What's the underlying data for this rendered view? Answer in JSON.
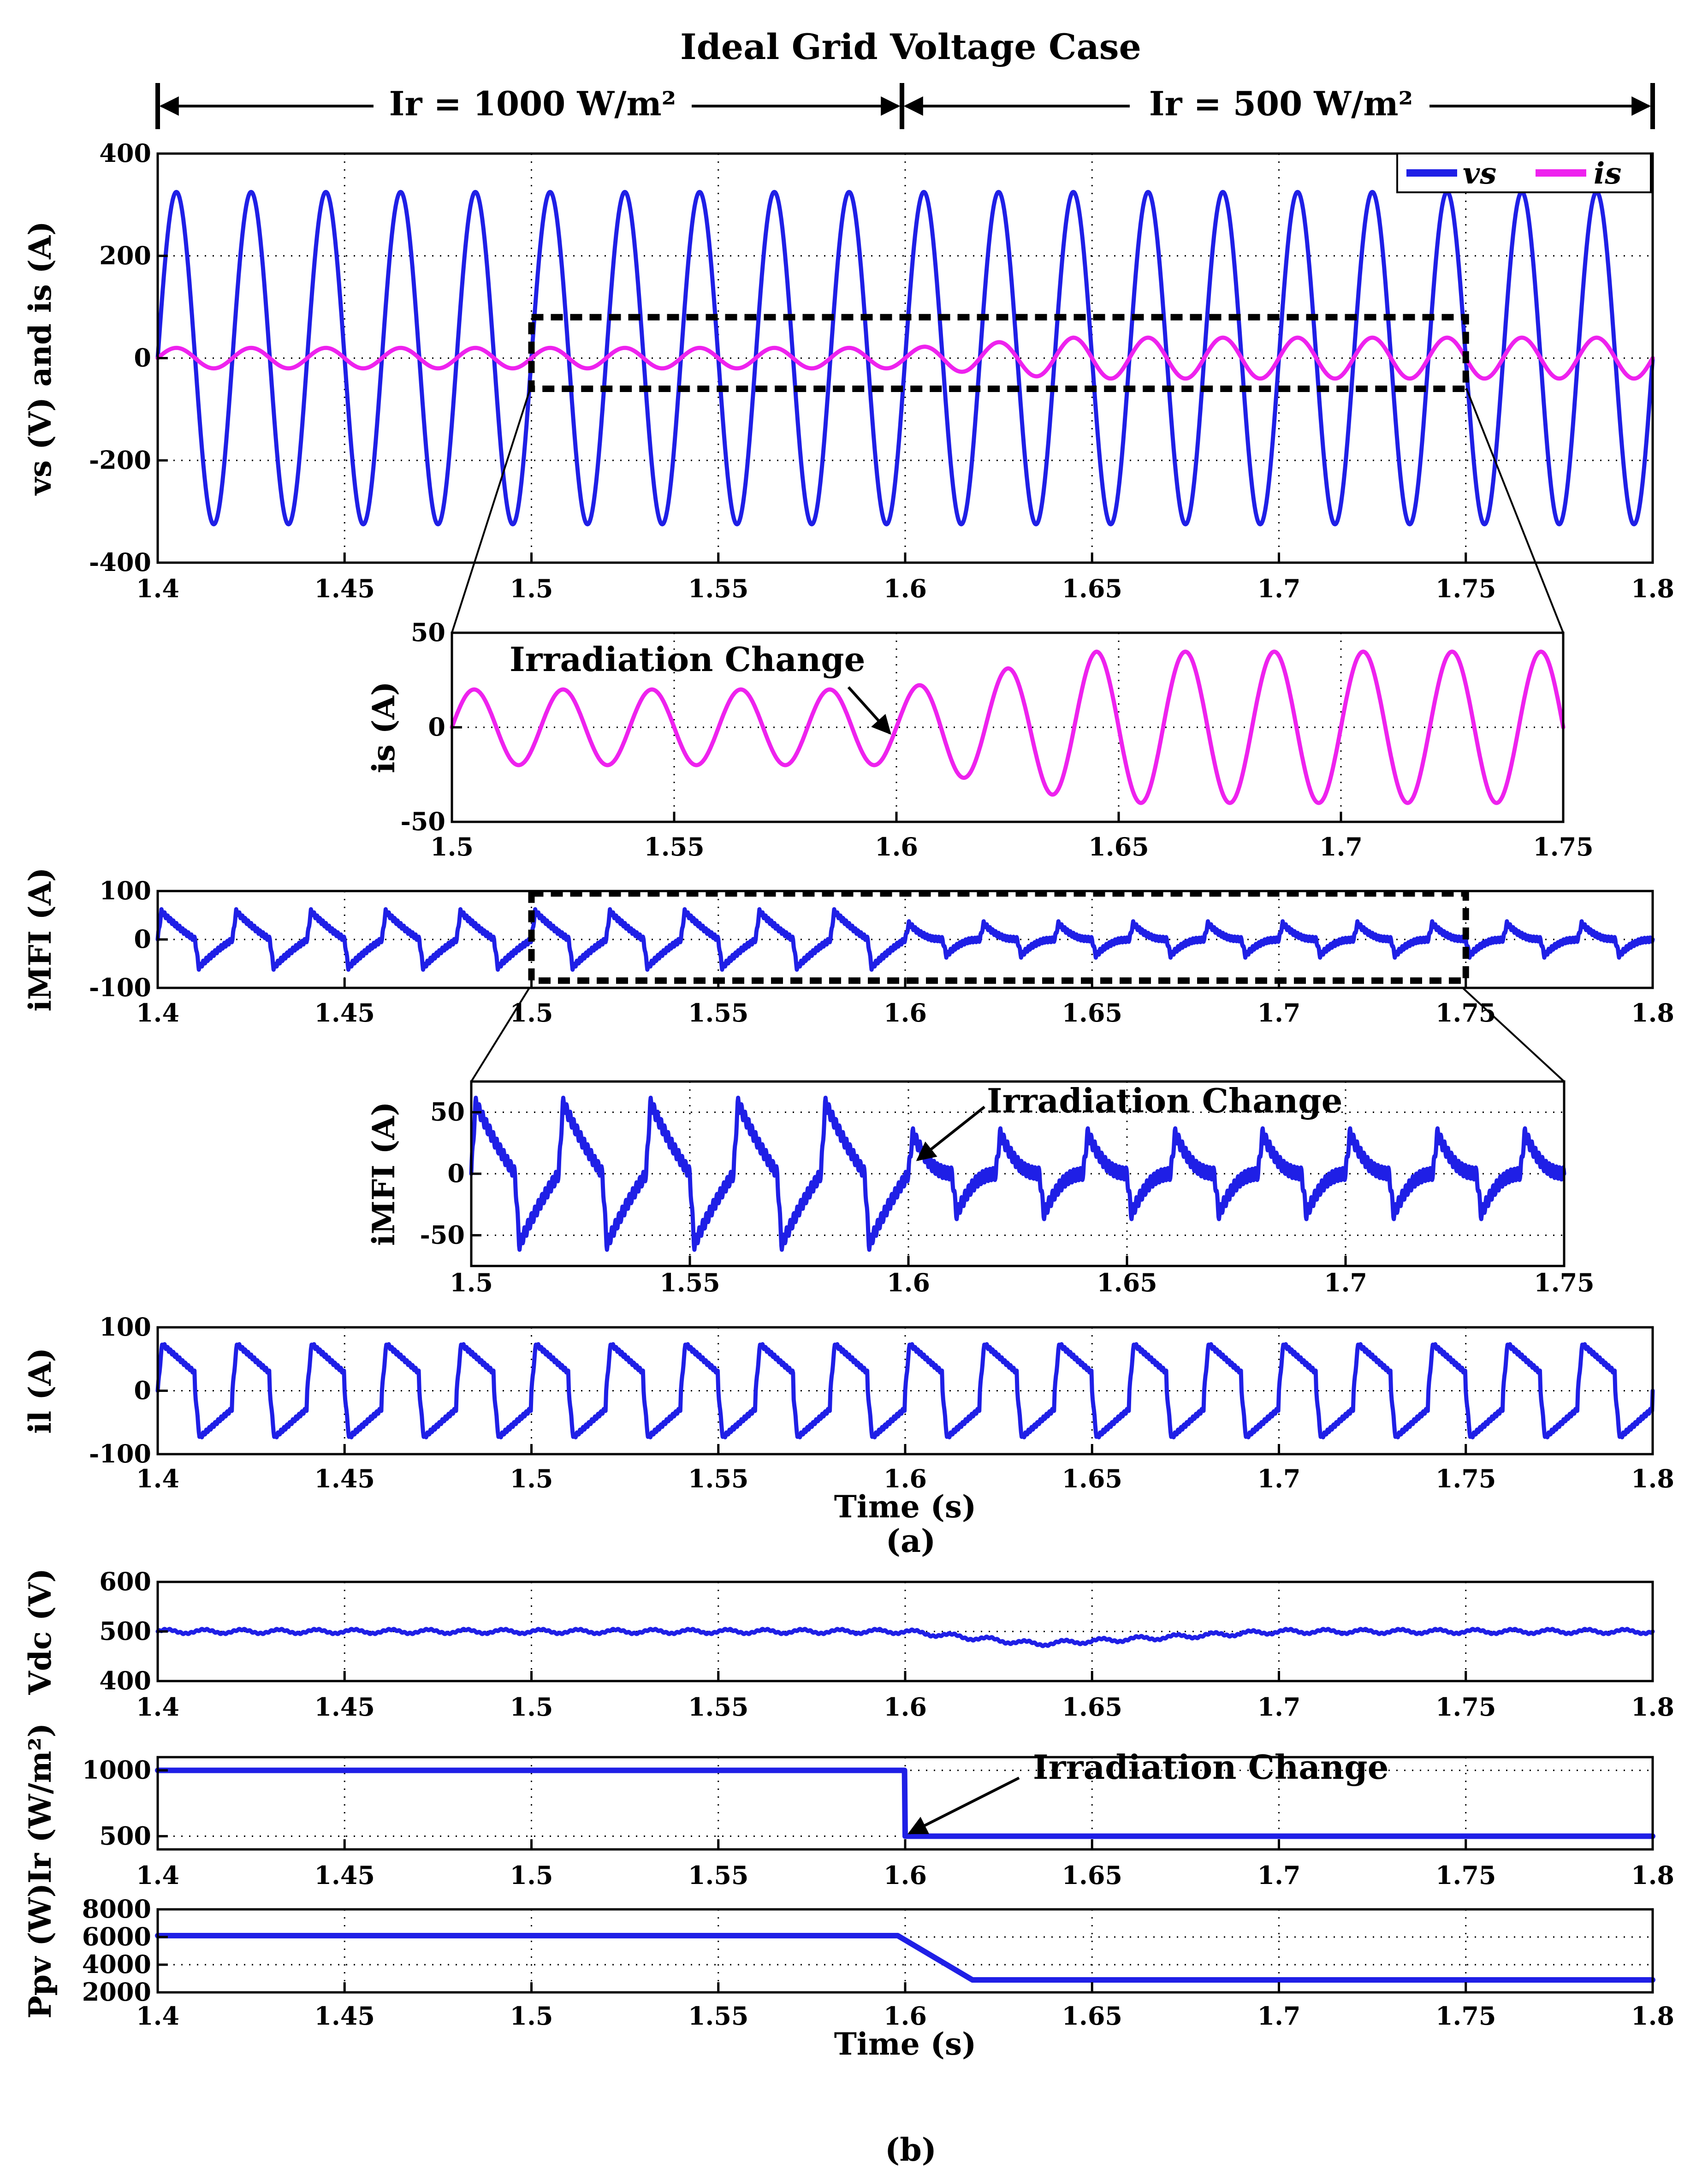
{
  "figure": {
    "title": "Ideal Grid Voltage Case",
    "irradiance_left_label": "Ir = 1000 W/m²",
    "irradiance_right_label": "Ir = 500 W/m²",
    "caption_a": "(a)",
    "caption_b": "(b)"
  },
  "colors": {
    "voltage": "#1f1fe6",
    "current_is": "#ee22ee",
    "other": "#1f1fe6"
  },
  "chart_data": [
    {
      "id": "vs_is",
      "type": "line",
      "ylabel": "vs (V) and is (A)",
      "xlim": [
        1.4,
        1.8
      ],
      "ylim": [
        -400,
        400
      ],
      "xticks": [
        1.4,
        1.45,
        1.5,
        1.55,
        1.6,
        1.65,
        1.7,
        1.75,
        1.8
      ],
      "yticks": [
        -400,
        -200,
        0,
        200,
        400
      ],
      "legend": [
        "vs",
        "is"
      ],
      "legend_position": "top-right",
      "series": [
        {
          "name": "vs",
          "kind": "sine",
          "frequency_hz": 50,
          "amplitude": 325,
          "phase_deg": 0
        },
        {
          "name": "is",
          "kind": "sine-step",
          "frequency_hz": 50,
          "amplitude_before": 20,
          "amplitude_after": 40,
          "step_time": 1.6,
          "transition_end": 1.645
        }
      ]
    },
    {
      "id": "is_zoom",
      "type": "line",
      "ylabel": "is (A)",
      "xlim": [
        1.5,
        1.75
      ],
      "ylim": [
        -50,
        50
      ],
      "xticks": [
        1.5,
        1.55,
        1.6,
        1.65,
        1.7,
        1.75
      ],
      "yticks": [
        -50,
        0,
        50
      ],
      "annotation": "Irradiation Change",
      "annotation_x": 1.6,
      "series": [
        {
          "name": "is",
          "kind": "sine-step",
          "frequency_hz": 50,
          "amplitude_before": 20,
          "amplitude_after": 40,
          "step_time": 1.6,
          "transition_end": 1.645
        }
      ]
    },
    {
      "id": "imfi",
      "type": "line",
      "ylabel": "iMFI (A)",
      "xlim": [
        1.4,
        1.8
      ],
      "ylim": [
        -100,
        100
      ],
      "xticks": [
        1.4,
        1.45,
        1.5,
        1.55,
        1.6,
        1.65,
        1.7,
        1.75,
        1.8
      ],
      "yticks": [
        -100,
        0,
        100
      ],
      "series": [
        {
          "name": "iMFI",
          "kind": "harmonic-compensation",
          "frequency_hz": 50,
          "peak_before": 65,
          "peak_after": 40,
          "step_time": 1.6
        }
      ]
    },
    {
      "id": "imfi_zoom",
      "type": "line",
      "ylabel": "iMFI (A)",
      "xlim": [
        1.5,
        1.75
      ],
      "ylim": [
        -75,
        75
      ],
      "xticks": [
        1.5,
        1.55,
        1.6,
        1.65,
        1.7,
        1.75
      ],
      "yticks": [
        -50,
        0,
        50
      ],
      "annotation": "Irradiation Change",
      "annotation_x": 1.6,
      "series": [
        {
          "name": "iMFI",
          "kind": "harmonic-compensation",
          "frequency_hz": 50,
          "peak_before": 65,
          "peak_after": 40,
          "step_time": 1.6
        }
      ]
    },
    {
      "id": "il",
      "type": "line",
      "ylabel": "il (A)",
      "xlabel": "Time (s)",
      "xlim": [
        1.4,
        1.8
      ],
      "ylim": [
        -100,
        100
      ],
      "xticks": [
        1.4,
        1.45,
        1.5,
        1.55,
        1.6,
        1.65,
        1.7,
        1.75,
        1.8
      ],
      "yticks": [
        -100,
        0,
        100
      ],
      "series": [
        {
          "name": "il",
          "kind": "nonlinear-load",
          "frequency_hz": 50,
          "peak": 80
        }
      ]
    },
    {
      "id": "vdc",
      "type": "line",
      "ylabel": "Vdc (V)",
      "xlim": [
        1.4,
        1.8
      ],
      "ylim": [
        400,
        600
      ],
      "xticks": [
        1.4,
        1.45,
        1.5,
        1.55,
        1.6,
        1.65,
        1.7,
        1.75,
        1.8
      ],
      "yticks": [
        400,
        500,
        600
      ],
      "series": [
        {
          "name": "Vdc",
          "kind": "dc-ripple",
          "level": 500,
          "ripple": 4,
          "dip": 25,
          "dip_center": 1.635,
          "dip_recovery": 1.7
        }
      ]
    },
    {
      "id": "irradiance",
      "type": "line",
      "ylabel": "Ir (W/m²)",
      "xlim": [
        1.4,
        1.8
      ],
      "ylim": [
        400,
        1100
      ],
      "xticks": [
        1.4,
        1.45,
        1.5,
        1.55,
        1.6,
        1.65,
        1.7,
        1.75,
        1.8
      ],
      "yticks": [
        500,
        1000
      ],
      "annotation": "Irradiation Change",
      "annotation_x": 1.6,
      "series": [
        {
          "name": "Ir",
          "kind": "step",
          "before": 1000,
          "after": 500,
          "step_time": 1.6
        }
      ]
    },
    {
      "id": "ppv",
      "type": "line",
      "ylabel": "Ppv (W)",
      "xlabel": "Time (s)",
      "xlim": [
        1.4,
        1.8
      ],
      "ylim": [
        2000,
        8000
      ],
      "xticks": [
        1.4,
        1.45,
        1.5,
        1.55,
        1.6,
        1.65,
        1.7,
        1.75,
        1.8
      ],
      "yticks": [
        2000,
        4000,
        6000,
        8000
      ],
      "series": [
        {
          "name": "Ppv",
          "kind": "ramp",
          "before": 6100,
          "after": 2900,
          "ramp_start": 1.598,
          "ramp_end": 1.618
        }
      ]
    }
  ]
}
